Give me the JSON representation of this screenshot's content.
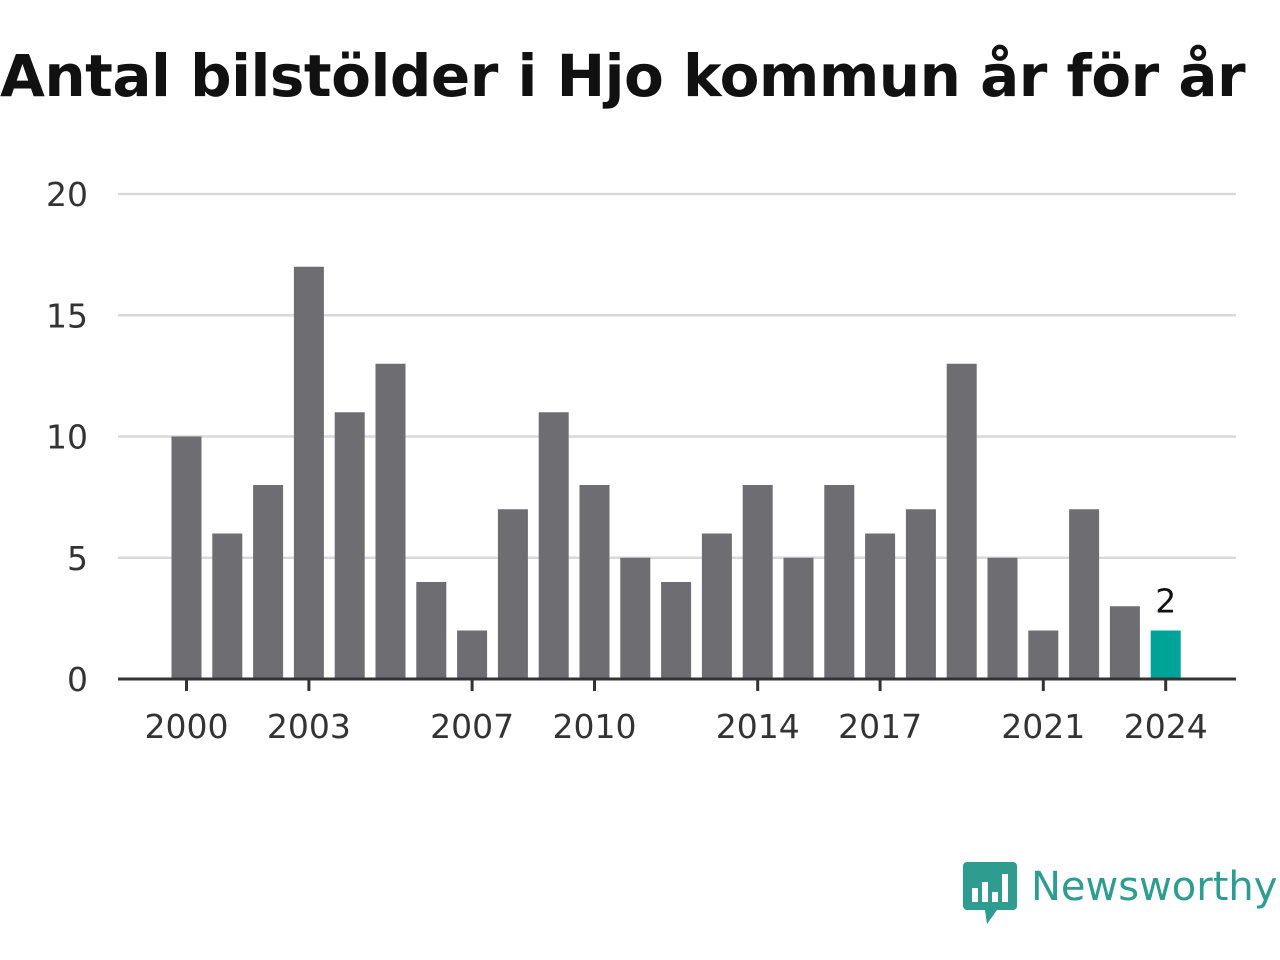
{
  "title": "Antal bilstölder i Hjo kommun år för år",
  "brand": {
    "name": "Newsworthy",
    "color": "#2e9c8f",
    "icon": "newsworthy-logo-icon"
  },
  "chart_data": {
    "type": "bar",
    "title": "Antal bilstölder i Hjo kommun år för år",
    "xlabel": "",
    "ylabel": "",
    "ylim": [
      0,
      20
    ],
    "y_ticks": [
      0,
      5,
      10,
      15,
      20
    ],
    "grid": true,
    "categories": [
      "2000",
      "2001",
      "2002",
      "2003",
      "2004",
      "2005",
      "2006",
      "2007",
      "2008",
      "2009",
      "2010",
      "2011",
      "2012",
      "2013",
      "2014",
      "2015",
      "2016",
      "2017",
      "2018",
      "2019",
      "2020",
      "2021",
      "2022",
      "2023",
      "2024"
    ],
    "values": [
      10,
      6,
      8,
      17,
      11,
      13,
      4,
      2,
      7,
      11,
      8,
      5,
      4,
      6,
      8,
      5,
      8,
      6,
      7,
      13,
      5,
      2,
      7,
      3,
      2
    ],
    "x_tick_labels": [
      "2000",
      "2003",
      "2007",
      "2010",
      "2014",
      "2017",
      "2021",
      "2024"
    ],
    "highlight": {
      "category": "2024",
      "label": "2"
    },
    "colors": {
      "bar": "#6e6d72",
      "highlight": "#00a398",
      "grid": "#d9d9d9",
      "axis": "#333333"
    }
  }
}
